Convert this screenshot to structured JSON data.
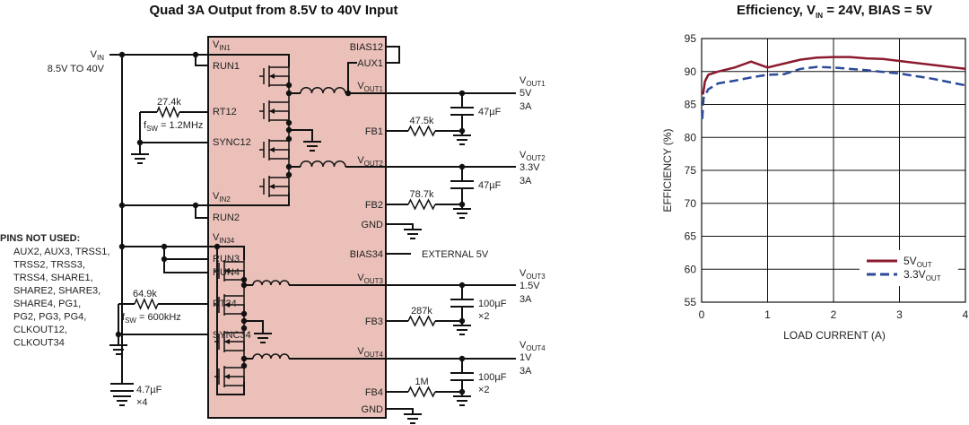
{
  "schematic": {
    "title": "Quad 3A Output from 8.5V to 40V Input",
    "vin": {
      "label": "V",
      "sub": "IN",
      "range": "8.5V TO 40V"
    },
    "ic_color": "#eac0b9",
    "left_pins": [
      {
        "text": "V",
        "sub": "IN1"
      },
      {
        "text": "RUN1",
        "sub": ""
      },
      {
        "text": "RT12",
        "sub": ""
      },
      {
        "text": "SYNC12",
        "sub": ""
      },
      {
        "text": "V",
        "sub": "IN2"
      },
      {
        "text": "RUN2",
        "sub": ""
      },
      {
        "text": "V",
        "sub": "IN34"
      },
      {
        "text": "RUN3",
        "sub": ""
      },
      {
        "text": "RUN4",
        "sub": ""
      },
      {
        "text": "RT34",
        "sub": ""
      },
      {
        "text": "SYNC34",
        "sub": ""
      }
    ],
    "right_pins": [
      {
        "text": "BIAS12",
        "sub": ""
      },
      {
        "text": "AUX1",
        "sub": ""
      },
      {
        "text": "V",
        "sub": "OUT1"
      },
      {
        "text": "FB1",
        "sub": ""
      },
      {
        "text": "V",
        "sub": "OUT2"
      },
      {
        "text": "FB2",
        "sub": ""
      },
      {
        "text": "GND",
        "sub": ""
      },
      {
        "text": "BIAS34",
        "sub": ""
      },
      {
        "text": "V",
        "sub": "OUT3"
      },
      {
        "text": "FB3",
        "sub": ""
      },
      {
        "text": "V",
        "sub": "OUT4"
      },
      {
        "text": "FB4",
        "sub": ""
      },
      {
        "text": "GND",
        "sub": ""
      }
    ],
    "rt12": {
      "value": "27.4k",
      "fsw": "f",
      "fsw_sub": "SW",
      "fsw_value": " = 1.2MHz"
    },
    "rt34": {
      "value": "64.9k",
      "fsw": "f",
      "fsw_sub": "SW",
      "fsw_value": " = 600kHz"
    },
    "vin_cap": {
      "value": "4.7µF",
      "count": "×4"
    },
    "bias34_label": "EXTERNAL 5V",
    "outputs": [
      {
        "label": "V",
        "sub": "OUT1",
        "voltage": "5V",
        "current": "3A",
        "fb_res": "47.5k",
        "cap": "47µF",
        "cap_count": ""
      },
      {
        "label": "V",
        "sub": "OUT2",
        "voltage": "3.3V",
        "current": "3A",
        "fb_res": "78.7k",
        "cap": "47µF",
        "cap_count": ""
      },
      {
        "label": "V",
        "sub": "OUT3",
        "voltage": "1.5V",
        "current": "3A",
        "fb_res": "287k",
        "cap": "100µF",
        "cap_count": "×2"
      },
      {
        "label": "V",
        "sub": "OUT4",
        "voltage": "1V",
        "current": "3A",
        "fb_res": "1M",
        "cap": "100µF",
        "cap_count": "×2"
      }
    ],
    "pins_not_used": {
      "heading": "PINS NOT USED:",
      "lines": [
        "AUX2, AUX3, TRSS1,",
        "TRSS2, TRSS3,",
        "TRSS4, SHARE1,",
        "SHARE2, SHARE3,",
        "SHARE4, PG1,",
        "PG2, PG3, PG4,",
        "CLKOUT12,",
        "CLKOUT34"
      ]
    }
  },
  "chart_data": {
    "type": "line",
    "title": "Efficiency, V",
    "title_sub": "IN",
    "title_rest": " = 24V, BIAS = 5V",
    "xlabel": "LOAD CURRENT (A)",
    "ylabel": "EFFICIENCY (%)",
    "xlim": [
      0,
      4
    ],
    "ylim": [
      55,
      95
    ],
    "xticks": [
      "0",
      "1",
      "2",
      "3",
      "4"
    ],
    "yticks": [
      "55",
      "60",
      "65",
      "70",
      "75",
      "80",
      "85",
      "90",
      "95"
    ],
    "grid": true,
    "legend_position": "bottom-right",
    "series": [
      {
        "name": "5V",
        "name_sub": "OUT",
        "color": "#8b1a2e",
        "style": "solid",
        "x": [
          0.02,
          0.05,
          0.1,
          0.25,
          0.5,
          0.75,
          1.0,
          1.25,
          1.5,
          1.75,
          2.0,
          2.25,
          2.5,
          2.75,
          3.0,
          3.5,
          4.0
        ],
        "y": [
          86.5,
          88.5,
          89.5,
          90.0,
          90.6,
          91.5,
          90.6,
          91.2,
          91.8,
          92.1,
          92.2,
          92.2,
          92.0,
          91.9,
          91.6,
          91.0,
          90.4
        ]
      },
      {
        "name": "3.3V",
        "name_sub": "OUT",
        "color": "#2b4a9a",
        "style": "dashed",
        "x": [
          0.01,
          0.03,
          0.1,
          0.25,
          0.5,
          0.75,
          1.0,
          1.25,
          1.5,
          1.75,
          2.0,
          2.5,
          3.0,
          3.5,
          4.0
        ],
        "y": [
          82.8,
          86.0,
          87.3,
          88.2,
          88.6,
          89.1,
          89.5,
          89.6,
          90.4,
          90.7,
          90.6,
          90.2,
          89.7,
          88.9,
          87.9
        ]
      }
    ]
  }
}
